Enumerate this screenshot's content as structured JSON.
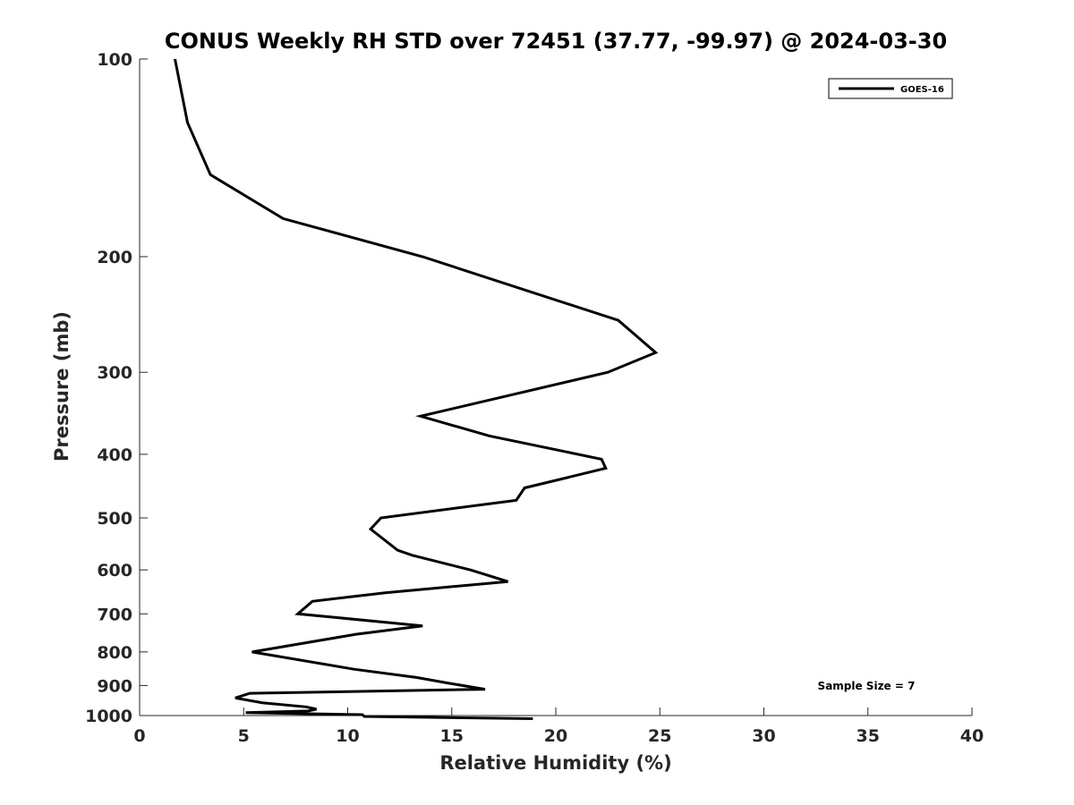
{
  "chart_data": {
    "type": "line",
    "title": "CONUS Weekly RH STD over 72451 (37.77, -99.97) @ 2024-03-30",
    "xlabel": "Relative Humidity (%)",
    "ylabel": "Pressure (mb)",
    "xlim": [
      0,
      40
    ],
    "ylim": [
      100,
      1000
    ],
    "y_scale": "log",
    "y_reversed": true,
    "x_ticks": [
      0,
      5,
      10,
      15,
      20,
      25,
      30,
      35,
      40
    ],
    "y_ticks": [
      100,
      200,
      300,
      400,
      500,
      600,
      700,
      800,
      900,
      1000
    ],
    "grid": false,
    "legend_position": "top-right",
    "series": [
      {
        "name": "GOES-16",
        "color": "#000000",
        "points": [
          [
            1.7,
            100
          ],
          [
            2.3,
            125
          ],
          [
            3.4,
            150
          ],
          [
            6.9,
            175
          ],
          [
            13.6,
            200
          ],
          [
            23.0,
            250
          ],
          [
            24.8,
            280
          ],
          [
            22.5,
            300
          ],
          [
            13.5,
            350
          ],
          [
            16.8,
            375
          ],
          [
            22.2,
            407
          ],
          [
            22.4,
            420
          ],
          [
            18.5,
            450
          ],
          [
            18.1,
            470
          ],
          [
            11.6,
            500
          ],
          [
            11.1,
            520
          ],
          [
            12.4,
            560
          ],
          [
            13.1,
            570
          ],
          [
            15.9,
            600
          ],
          [
            17.7,
            625
          ],
          [
            11.8,
            650
          ],
          [
            8.3,
            670
          ],
          [
            7.6,
            700
          ],
          [
            13.6,
            730
          ],
          [
            10.4,
            752
          ],
          [
            5.4,
            800
          ],
          [
            10.3,
            850
          ],
          [
            13.3,
            875
          ],
          [
            14.8,
            892
          ],
          [
            16.6,
            912
          ],
          [
            5.3,
            925
          ],
          [
            4.6,
            940
          ],
          [
            5.9,
            956
          ],
          [
            8.0,
            970
          ],
          [
            8.5,
            978
          ],
          [
            8.1,
            984
          ],
          [
            5.1,
            990
          ],
          [
            10.7,
            997
          ],
          [
            10.8,
            1003
          ],
          [
            18.9,
            1011
          ]
        ]
      }
    ],
    "annotations": [
      "Sample Size = 7"
    ]
  }
}
